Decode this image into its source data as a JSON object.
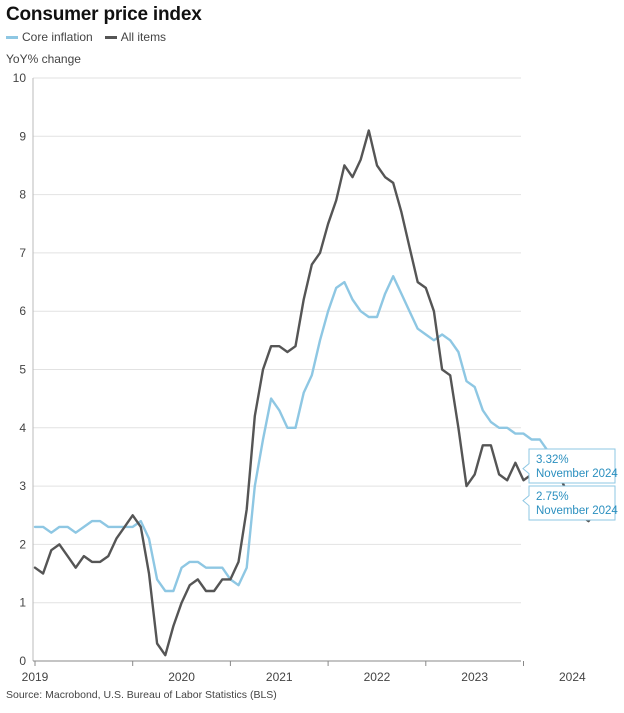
{
  "title": "Consumer price index",
  "legend": [
    {
      "label": "Core inflation",
      "color": "#8ec7e3"
    },
    {
      "label": "All items",
      "color": "#555555"
    }
  ],
  "source": "Source: Macrobond, U.S. Bureau of Labor Statistics (BLS)",
  "chart_data": {
    "type": "line",
    "title": "Consumer price index",
    "xlabel": "",
    "ylabel": "YoY% change",
    "ylim": [
      0,
      10
    ],
    "yticks": [
      0,
      1,
      2,
      3,
      4,
      5,
      6,
      7,
      8,
      9,
      10
    ],
    "xticks": [
      "2019",
      "2020",
      "2021",
      "2022",
      "2023",
      "2024"
    ],
    "grid": "horizontal",
    "x_start": "2019-01",
    "x_end": "2024-11",
    "series": [
      {
        "name": "Core inflation",
        "color": "#8ec7e3",
        "values": [
          2.3,
          2.3,
          2.2,
          2.3,
          2.3,
          2.2,
          2.3,
          2.4,
          2.4,
          2.3,
          2.3,
          2.3,
          2.3,
          2.4,
          2.1,
          1.4,
          1.2,
          1.2,
          1.6,
          1.7,
          1.7,
          1.6,
          1.6,
          1.6,
          1.4,
          1.3,
          1.6,
          3.0,
          3.8,
          4.5,
          4.3,
          4.0,
          4.0,
          4.6,
          4.9,
          5.5,
          6.0,
          6.4,
          6.5,
          6.2,
          6.0,
          5.9,
          5.9,
          6.3,
          6.6,
          6.3,
          6.0,
          5.7,
          5.6,
          5.5,
          5.6,
          5.5,
          5.3,
          4.8,
          4.7,
          4.3,
          4.1,
          4.0,
          4.0,
          3.9,
          3.9,
          3.8,
          3.8,
          3.6,
          3.4,
          3.3,
          3.2,
          3.2,
          3.3,
          3.3,
          3.3
        ],
        "end_label": {
          "value": "3.32%",
          "date": "November 2024"
        }
      },
      {
        "name": "All items",
        "color": "#555555",
        "values": [
          1.6,
          1.5,
          1.9,
          2.0,
          1.8,
          1.6,
          1.8,
          1.7,
          1.7,
          1.8,
          2.1,
          2.3,
          2.5,
          2.3,
          1.5,
          0.3,
          0.1,
          0.6,
          1.0,
          1.3,
          1.4,
          1.2,
          1.2,
          1.4,
          1.4,
          1.7,
          2.6,
          4.2,
          5.0,
          5.4,
          5.4,
          5.3,
          5.4,
          6.2,
          6.8,
          7.0,
          7.5,
          7.9,
          8.5,
          8.3,
          8.6,
          9.1,
          8.5,
          8.3,
          8.2,
          7.7,
          7.1,
          6.5,
          6.4,
          6.0,
          5.0,
          4.9,
          4.0,
          3.0,
          3.2,
          3.7,
          3.7,
          3.2,
          3.1,
          3.4,
          3.1,
          3.2,
          3.5,
          3.4,
          3.3,
          3.0,
          2.9,
          2.5,
          2.4,
          2.6,
          2.75
        ],
        "end_label": {
          "value": "2.75%",
          "date": "November 2024"
        }
      }
    ]
  }
}
